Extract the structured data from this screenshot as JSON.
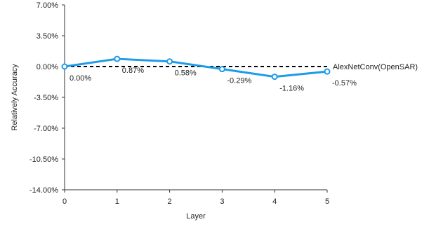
{
  "chart_data": {
    "type": "line",
    "title": "",
    "xlabel": "Layer",
    "ylabel": "Relatively Accuracy",
    "x": [
      0,
      1,
      2,
      3,
      4,
      5
    ],
    "x_tick_labels": [
      "0",
      "1",
      "2",
      "3",
      "4",
      "5"
    ],
    "xlim": [
      0,
      5
    ],
    "ylim": [
      -14.0,
      7.0
    ],
    "y_ticks": [
      7.0,
      3.5,
      0.0,
      -3.5,
      -7.0,
      -10.5,
      -14.0
    ],
    "y_tick_labels": [
      "7.00%",
      "3.50%",
      "0.00%",
      "-3.50%",
      "-7.00%",
      "-10.50%",
      "-14.00%"
    ],
    "grid": false,
    "series": [
      {
        "values": [
          0.0,
          0.87,
          0.58,
          -0.29,
          -1.16,
          -0.57
        ],
        "data_labels": [
          "0.00%",
          "0.87%",
          "0.58%",
          "-0.29%",
          "-1.16%",
          "-0.57%"
        ],
        "color": "#1e9be8",
        "marker": "hollow-circle"
      }
    ],
    "reference_line": {
      "label": "AlexNetConv(OpenSAR)",
      "value": 0.0,
      "style": "dashed",
      "color": "#000000"
    }
  }
}
